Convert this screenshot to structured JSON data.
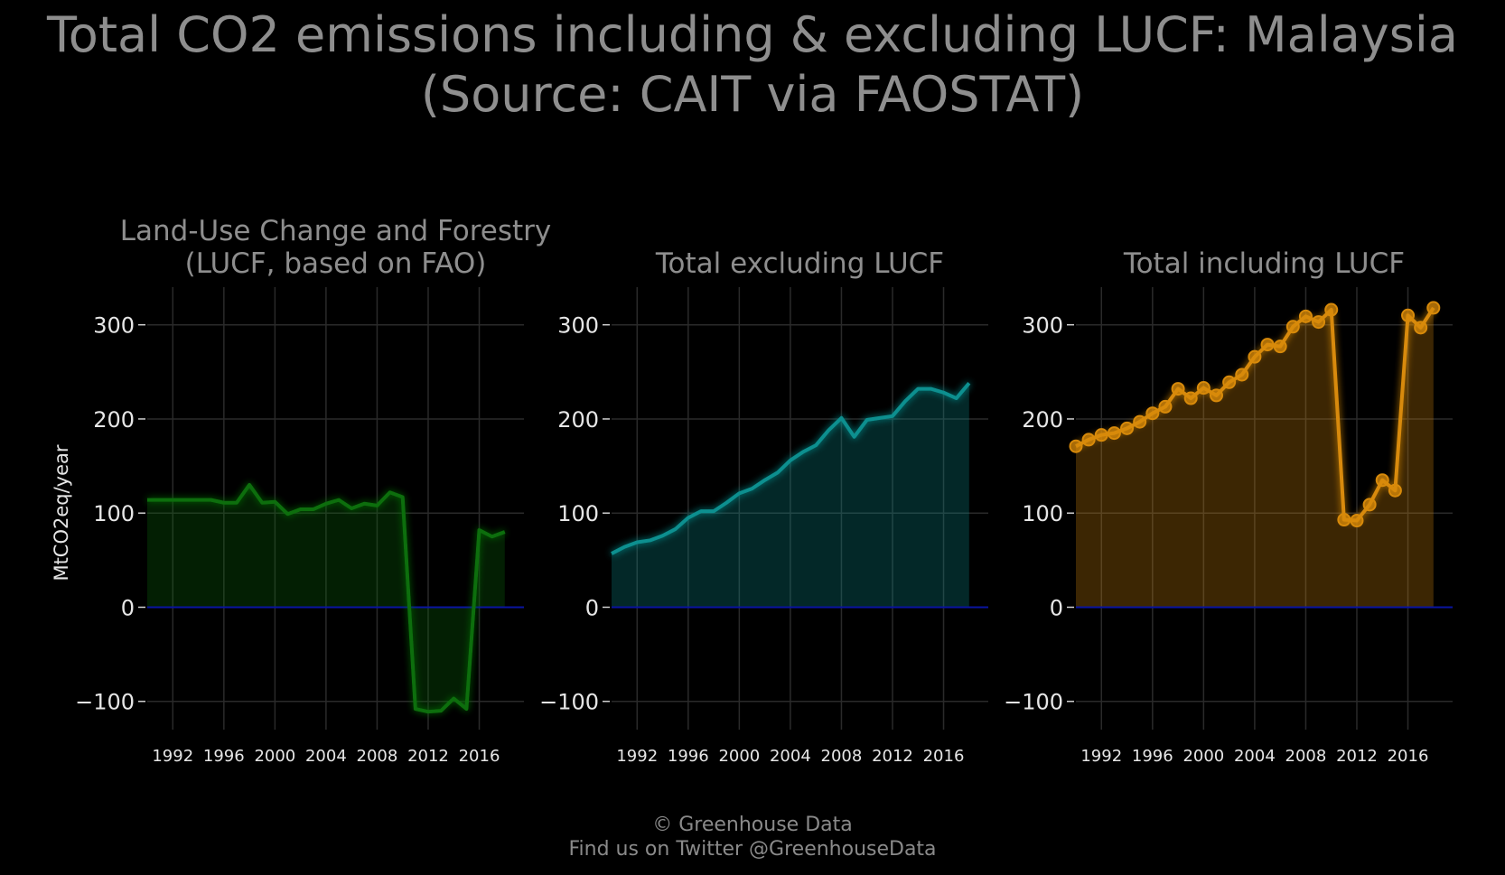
{
  "title": {
    "line1": "Total CO2 emissions including & excluding LUCF: Malaysia",
    "line2": "(Source: CAIT via FAOSTAT)"
  },
  "caption": {
    "line1": "© Greenhouse Data",
    "line2": "Find us on Twitter @GreenhouseData"
  },
  "ylabel": "MtCO2eq/year",
  "colors": {
    "background": "#000000",
    "grid": "#2a2a2a",
    "zero_line": "#0a14a0",
    "lucf": "#0b6e0b",
    "excl": "#0a8f8f",
    "incl": "#d88a0a"
  },
  "chart_data": [
    {
      "type": "area",
      "title_lines": [
        "Land-Use Change and Forestry",
        "(LUCF, based on FAO)"
      ],
      "color": "#0b6e0b",
      "markers": false,
      "ylim": [
        -130,
        340
      ],
      "yticks": [
        -100,
        0,
        100,
        200,
        300
      ],
      "ytick_labels": [
        "−100",
        "0",
        "100",
        "200",
        "300"
      ],
      "xlim": [
        1990,
        2019.5
      ],
      "xticks": [
        1992,
        1996,
        2000,
        2004,
        2008,
        2012,
        2016
      ],
      "x": [
        1990,
        1991,
        1992,
        1993,
        1994,
        1995,
        1996,
        1997,
        1998,
        1999,
        2000,
        2001,
        2002,
        2003,
        2004,
        2005,
        2006,
        2007,
        2008,
        2009,
        2010,
        2011,
        2012,
        2013,
        2014,
        2015,
        2016,
        2017,
        2018
      ],
      "y": [
        114,
        114,
        114,
        114,
        114,
        114,
        111,
        111,
        130,
        111,
        112,
        99,
        104,
        104,
        110,
        114,
        105,
        110,
        108,
        122,
        117,
        -108,
        -111,
        -110,
        -97,
        -108,
        82,
        75,
        80
      ]
    },
    {
      "type": "area",
      "title_lines": [
        "Total excluding LUCF"
      ],
      "color": "#0a8f8f",
      "markers": false,
      "ylim": [
        -130,
        340
      ],
      "yticks": [
        -100,
        0,
        100,
        200,
        300
      ],
      "ytick_labels": [
        "−100",
        "0",
        "100",
        "200",
        "300"
      ],
      "xlim": [
        1990,
        2019.5
      ],
      "xticks": [
        1992,
        1996,
        2000,
        2004,
        2008,
        2012,
        2016
      ],
      "x": [
        1990,
        1991,
        1992,
        1993,
        1994,
        1995,
        1996,
        1997,
        1998,
        1999,
        2000,
        2001,
        2002,
        2003,
        2004,
        2005,
        2006,
        2007,
        2008,
        2009,
        2010,
        2011,
        2012,
        2013,
        2014,
        2015,
        2016,
        2017,
        2018
      ],
      "y": [
        57,
        64,
        69,
        71,
        76,
        83,
        95,
        102,
        102,
        111,
        121,
        126,
        135,
        143,
        156,
        165,
        172,
        188,
        201,
        181,
        199,
        201,
        203,
        219,
        232,
        232,
        228,
        222,
        238
      ]
    },
    {
      "type": "area",
      "title_lines": [
        "Total including LUCF"
      ],
      "color": "#d88a0a",
      "markers": true,
      "ylim": [
        -130,
        340
      ],
      "yticks": [
        -100,
        0,
        100,
        200,
        300
      ],
      "ytick_labels": [
        "−100",
        "0",
        "100",
        "200",
        "300"
      ],
      "xlim": [
        1990,
        2019.5
      ],
      "xticks": [
        1992,
        1996,
        2000,
        2004,
        2008,
        2012,
        2016
      ],
      "x": [
        1990,
        1991,
        1992,
        1993,
        1994,
        1995,
        1996,
        1997,
        1998,
        1999,
        2000,
        2001,
        2002,
        2003,
        2004,
        2005,
        2006,
        2007,
        2008,
        2009,
        2010,
        2011,
        2012,
        2013,
        2014,
        2015,
        2016,
        2017,
        2018
      ],
      "y": [
        171,
        178,
        183,
        185,
        190,
        197,
        206,
        213,
        232,
        222,
        233,
        225,
        239,
        247,
        266,
        279,
        277,
        298,
        309,
        303,
        316,
        93,
        92,
        109,
        135,
        124,
        310,
        297,
        318
      ]
    }
  ]
}
